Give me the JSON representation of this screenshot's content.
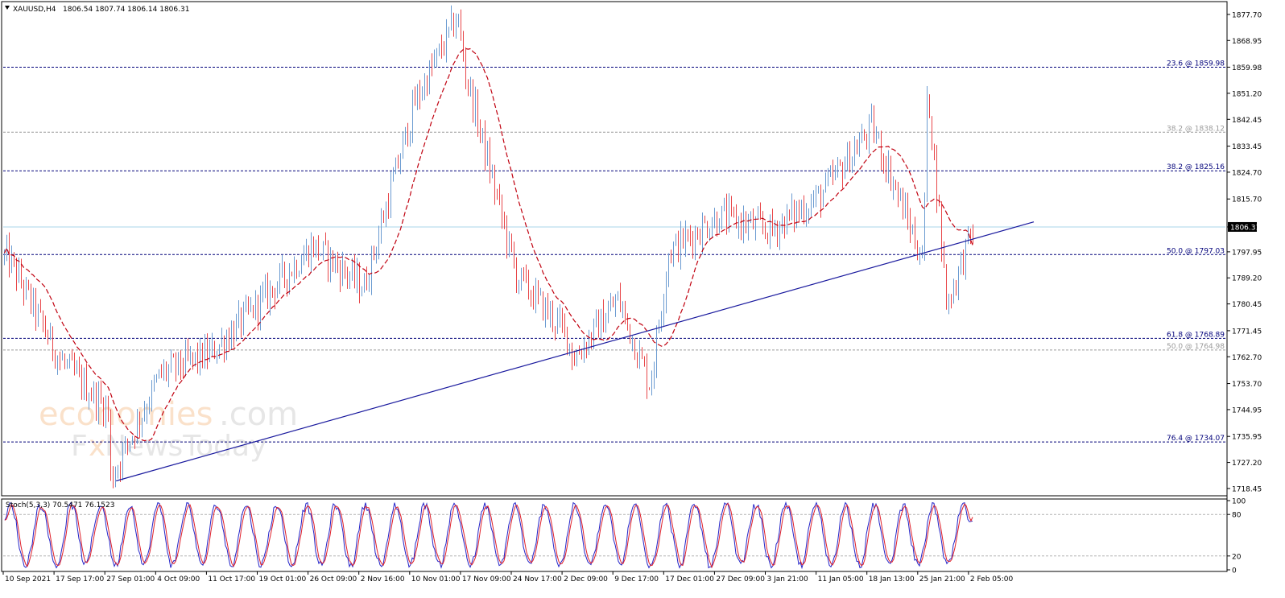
{
  "header": {
    "symbol": "XAUUSD,H4",
    "ohlc": "1806.54 1807.74 1806.14 1806.31"
  },
  "watermark": {
    "line1_a": "economies",
    "line1_b": ".com",
    "line2_a": "F",
    "line2_b": "x",
    "line2_c": "NewsToday"
  },
  "colors": {
    "background": "#ffffff",
    "bull": "#6b9bd1",
    "bear": "#e8474a",
    "ma": "#c0000f",
    "trendline": "#1a1a9e",
    "fib_main": "#00007a",
    "fib_secondary": "#9a9a9a",
    "current_price_line": "#a8d4ea",
    "stoch_main": "#2323c8",
    "stoch_signal": "#e0202a"
  },
  "chart_data": [
    {
      "type": "candlestick",
      "symbol": "XAUUSD",
      "timeframe": "H4",
      "current_price": "1806.31",
      "ylim": [
        1716,
        1882
      ],
      "y_ticks": [
        "1877.70",
        "1868.95",
        "1859.98",
        "1851.20",
        "1842.45",
        "1833.45",
        "1824.70",
        "1815.70",
        "1806.31",
        "1797.95",
        "1789.20",
        "1780.45",
        "1771.45",
        "1762.70",
        "1753.70",
        "1744.95",
        "1735.95",
        "1727.20",
        "1718.45"
      ],
      "x_ticks": [
        "10 Sep 2021",
        "17 Sep 17:00",
        "27 Sep 01:00",
        "4 Oct 09:00",
        "11 Oct 17:00",
        "19 Oct 01:00",
        "26 Oct 09:00",
        "2 Nov 16:00",
        "10 Nov 01:00",
        "17 Nov 09:00",
        "24 Nov 17:00",
        "2 Dec 09:00",
        "9 Dec 17:00",
        "17 Dec 01:00",
        "27 Dec 09:00",
        "3 Jan 21:00",
        "11 Jan 05:00",
        "18 Jan 13:00",
        "25 Jan 21:00",
        "2 Feb 05:00"
      ],
      "price_path": [
        {
          "tick": "10 Sep 2021",
          "close": 1796
        },
        {
          "tick": "17 Sep 17:00",
          "close": 1762
        },
        {
          "tick": "27 Sep 01:00",
          "close": 1744
        },
        {
          "tick": "4 Oct 09:00",
          "close": 1757
        },
        {
          "tick": "11 Oct 17:00",
          "close": 1764
        },
        {
          "tick": "19 Oct 01:00",
          "close": 1782
        },
        {
          "tick": "26 Oct 09:00",
          "close": 1800
        },
        {
          "tick": "2 Nov 16:00",
          "close": 1786
        },
        {
          "tick": "10 Nov 01:00",
          "close": 1848
        },
        {
          "tick": "17 Nov 09:00",
          "close": 1858
        },
        {
          "tick": "24 Nov 17:00",
          "close": 1790
        },
        {
          "tick": "2 Dec 09:00",
          "close": 1770
        },
        {
          "tick": "9 Dec 17:00",
          "close": 1782
        },
        {
          "tick": "17 Dec 01:00",
          "close": 1798
        },
        {
          "tick": "27 Dec 09:00",
          "close": 1810
        },
        {
          "tick": "3 Jan 21:00",
          "close": 1805
        },
        {
          "tick": "11 Jan 05:00",
          "close": 1817
        },
        {
          "tick": "18 Jan 13:00",
          "close": 1840
        },
        {
          "tick": "25 Jan 21:00",
          "close": 1795
        },
        {
          "tick": "2 Feb 05:00",
          "close": 1806.31
        }
      ],
      "swing_points": [
        {
          "label": "low",
          "tick": "27 Sep 01:00",
          "value": 1721
        },
        {
          "label": "high",
          "tick": "17 Nov 09:00",
          "value": 1877
        },
        {
          "label": "low",
          "tick": "2 Dec 09:00",
          "value": 1762
        },
        {
          "label": "low",
          "tick": "9 Dec 17:00",
          "value": 1753
        },
        {
          "label": "high",
          "tick": "25 Jan 21:00",
          "value": 1854
        },
        {
          "label": "low",
          "tick": "25 Jan 21:00",
          "value": 1780
        }
      ],
      "levels": [
        {
          "label": "23.6 @ 1859.98",
          "value": 1859.98,
          "kind": "main"
        },
        {
          "label": "38.2 @ 1838.12",
          "value": 1838.12,
          "kind": "secondary"
        },
        {
          "label": "38.2 @ 1825.16",
          "value": 1825.16,
          "kind": "main"
        },
        {
          "label": "50.0 @ 1797.03",
          "value": 1797.03,
          "kind": "main"
        },
        {
          "label": "61.8 @ 1768.89",
          "value": 1768.89,
          "kind": "main"
        },
        {
          "label": "50.0 @ 1764.98",
          "value": 1764.98,
          "kind": "secondary"
        },
        {
          "label": "76.4 @ 1734.07",
          "value": 1734.07,
          "kind": "main"
        }
      ],
      "trendline": {
        "from": {
          "tick": "27 Sep 01:00",
          "value": 1721
        },
        "to": {
          "tick": "2 Feb 05:00",
          "value": 1808
        }
      },
      "moving_average": {
        "style": "dashed",
        "color": "#c0000f"
      },
      "grid": false
    },
    {
      "type": "line",
      "title": "Stoch(5,3,3) 70.5471 76.1523",
      "ylim": [
        0,
        100
      ],
      "y_ticks": [
        "100",
        "80",
        "20",
        "0"
      ],
      "levels": [
        80,
        20
      ],
      "series": [
        {
          "color": "#2323c8",
          "last": 70.5471
        },
        {
          "color": "#e0202a",
          "last": 76.1523
        }
      ]
    }
  ]
}
